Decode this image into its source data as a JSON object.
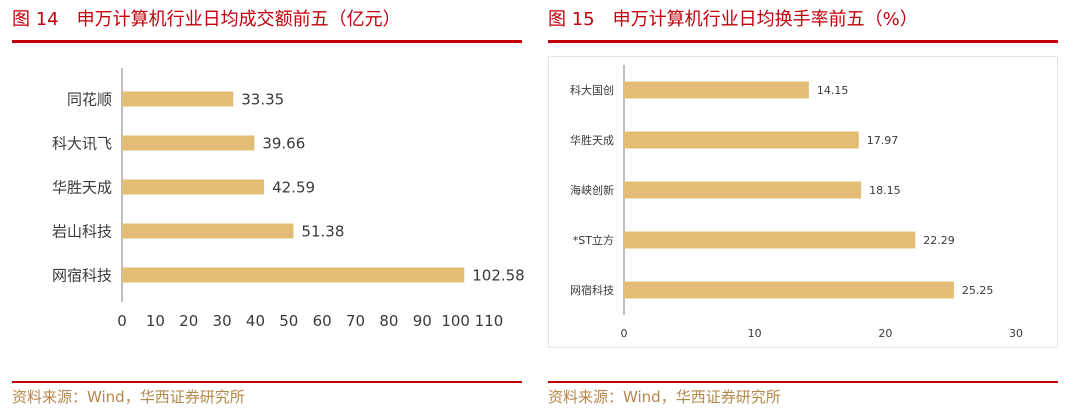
{
  "left": {
    "title": "图 14　申万计算机行业日均成交额前五（亿元）",
    "source": "资料来源：Wind，华西证券研究所"
  },
  "right": {
    "title": "图 15　申万计算机行业日均换手率前五（%）",
    "source": "资料来源：Wind，华西证券研究所"
  },
  "colors": {
    "bar": "#e3bd75",
    "accent": "#c0000b",
    "source_text": "#b4874a",
    "axis": "#7f7f7f",
    "text": "#3a3a3a"
  },
  "chart_data": [
    {
      "type": "bar",
      "orientation": "horizontal",
      "title": "",
      "categories": [
        "同花顺",
        "科大讯飞",
        "华胜天成",
        "岩山科技",
        "网宿科技"
      ],
      "values": [
        33.35,
        39.66,
        42.59,
        51.38,
        102.58
      ],
      "data_labels": [
        "33.35",
        "39.66",
        "42.59",
        "51.38",
        "102.58"
      ],
      "xlim": [
        0,
        110
      ],
      "xticks": [
        "0",
        "10",
        "20",
        "30",
        "40",
        "50",
        "60",
        "70",
        "80",
        "90",
        "100",
        "110"
      ],
      "xtick_values": [
        0,
        10,
        20,
        30,
        40,
        50,
        60,
        70,
        80,
        90,
        100,
        110
      ],
      "grid": false,
      "legend": "none"
    },
    {
      "type": "bar",
      "orientation": "horizontal",
      "title": "",
      "categories": [
        "科大国创",
        "华胜天成",
        "海峡创新",
        "*ST立方",
        "网宿科技"
      ],
      "values": [
        14.15,
        17.97,
        18.15,
        22.29,
        25.25
      ],
      "data_labels": [
        "14.15",
        "17.97",
        "18.15",
        "22.29",
        "25.25"
      ],
      "xlim": [
        0,
        30
      ],
      "xticks": [
        "0",
        "10",
        "20",
        "30"
      ],
      "xtick_values": [
        0,
        10,
        20,
        30
      ],
      "grid": false,
      "legend": "none"
    }
  ]
}
